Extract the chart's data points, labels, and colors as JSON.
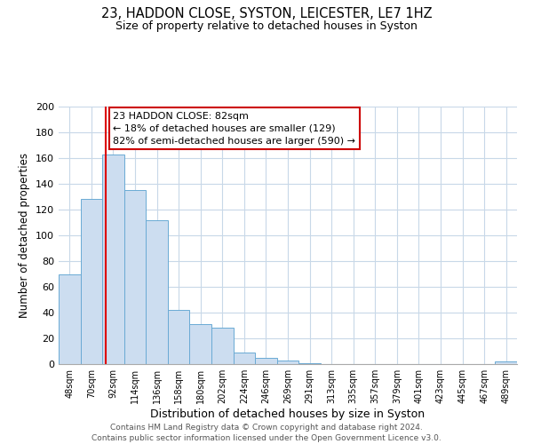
{
  "title": "23, HADDON CLOSE, SYSTON, LEICESTER, LE7 1HZ",
  "subtitle": "Size of property relative to detached houses in Syston",
  "xlabel": "Distribution of detached houses by size in Syston",
  "ylabel": "Number of detached properties",
  "bar_values": [
    70,
    128,
    163,
    135,
    112,
    42,
    31,
    28,
    9,
    5,
    3,
    1,
    0,
    0,
    0,
    0,
    0,
    0,
    0,
    0,
    2
  ],
  "bin_labels": [
    "48sqm",
    "70sqm",
    "92sqm",
    "114sqm",
    "136sqm",
    "158sqm",
    "180sqm",
    "202sqm",
    "224sqm",
    "246sqm",
    "269sqm",
    "291sqm",
    "313sqm",
    "335sqm",
    "357sqm",
    "379sqm",
    "401sqm",
    "423sqm",
    "445sqm",
    "467sqm",
    "489sqm"
  ],
  "bar_color": "#ccddf0",
  "bar_edge_color": "#6aaad4",
  "grid_color": "#c8d8e8",
  "vline_color": "#dd0000",
  "annotation_text": "23 HADDON CLOSE: 82sqm\n← 18% of detached houses are smaller (129)\n82% of semi-detached houses are larger (590) →",
  "annotation_box_edgecolor": "#cc0000",
  "ylim": [
    0,
    200
  ],
  "yticks": [
    0,
    20,
    40,
    60,
    80,
    100,
    120,
    140,
    160,
    180,
    200
  ],
  "footer_line1": "Contains HM Land Registry data © Crown copyright and database right 2024.",
  "footer_line2": "Contains public sector information licensed under the Open Government Licence v3.0.",
  "figsize": [
    6.0,
    5.0
  ],
  "dpi": 100
}
